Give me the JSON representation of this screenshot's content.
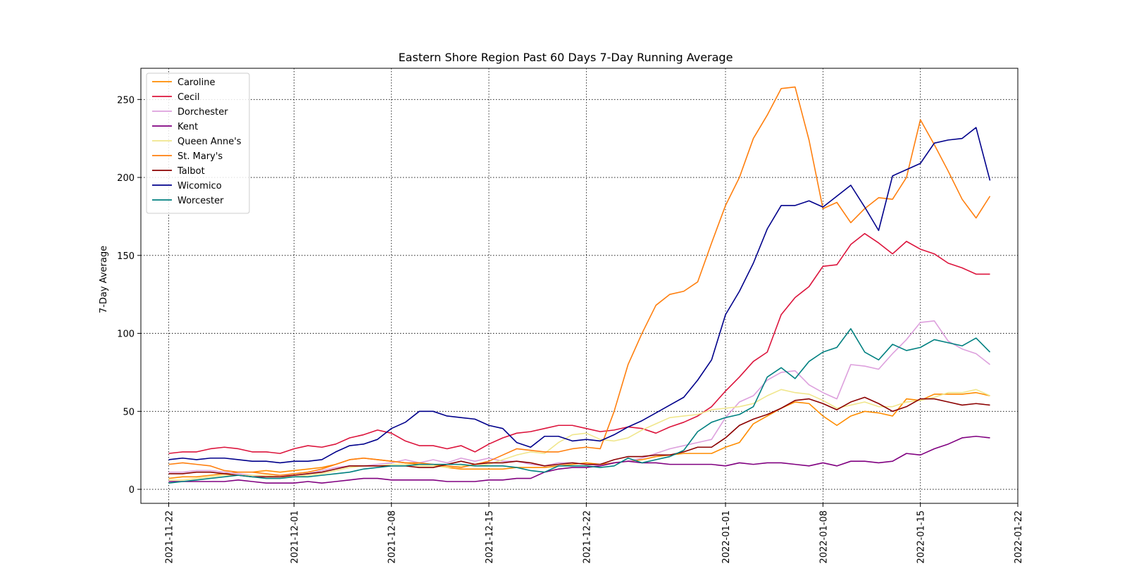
{
  "chart_data": {
    "type": "line",
    "title": "Eastern Shore Region Past 60 Days 7-Day Running Average",
    "xlabel": "",
    "ylabel": "7-Day Average",
    "xlim": [
      "2021-11-20",
      "2022-01-22"
    ],
    "ylim": [
      -9,
      270
    ],
    "x_ticks": [
      "2021-11-22",
      "2021-12-01",
      "2021-12-08",
      "2021-12-15",
      "2021-12-22",
      "2022-01-01",
      "2022-01-08",
      "2022-01-15",
      "2022-01-22"
    ],
    "y_ticks": [
      0,
      50,
      100,
      150,
      200,
      250
    ],
    "grid": true,
    "legend_position": "upper-left",
    "x": [
      "2021-11-22",
      "2021-11-23",
      "2021-11-24",
      "2021-11-25",
      "2021-11-26",
      "2021-11-27",
      "2021-11-28",
      "2021-11-29",
      "2021-11-30",
      "2021-12-01",
      "2021-12-02",
      "2021-12-03",
      "2021-12-04",
      "2021-12-05",
      "2021-12-06",
      "2021-12-07",
      "2021-12-08",
      "2021-12-09",
      "2021-12-10",
      "2021-12-11",
      "2021-12-12",
      "2021-12-13",
      "2021-12-14",
      "2021-12-15",
      "2021-12-16",
      "2021-12-17",
      "2021-12-18",
      "2021-12-19",
      "2021-12-20",
      "2021-12-21",
      "2021-12-22",
      "2021-12-23",
      "2021-12-24",
      "2021-12-25",
      "2021-12-26",
      "2021-12-27",
      "2021-12-28",
      "2021-12-29",
      "2021-12-30",
      "2021-12-31",
      "2022-01-01",
      "2022-01-02",
      "2022-01-03",
      "2022-01-04",
      "2022-01-05",
      "2022-01-06",
      "2022-01-07",
      "2022-01-08",
      "2022-01-09",
      "2022-01-10",
      "2022-01-11",
      "2022-01-12",
      "2022-01-13",
      "2022-01-14",
      "2022-01-15",
      "2022-01-16",
      "2022-01-17",
      "2022-01-18",
      "2022-01-19",
      "2022-01-20"
    ],
    "series": [
      {
        "name": "Caroline",
        "color": "#ff8c00",
        "values": [
          7,
          8,
          8,
          9,
          10,
          11,
          11,
          12,
          11,
          12,
          13,
          14,
          16,
          19,
          20,
          19,
          18,
          17,
          16,
          16,
          14,
          13,
          13,
          13,
          13,
          14,
          14,
          14,
          15,
          16,
          17,
          16,
          17,
          18,
          19,
          21,
          22,
          23,
          23,
          23,
          27,
          30,
          42,
          47,
          52,
          56,
          55,
          47,
          41,
          47,
          50,
          49,
          47,
          58,
          57,
          61,
          61,
          61,
          62,
          60
        ]
      },
      {
        "name": "Cecil",
        "color": "#dc143c",
        "values": [
          23,
          24,
          24,
          26,
          27,
          26,
          24,
          24,
          23,
          26,
          28,
          27,
          29,
          33,
          35,
          38,
          36,
          31,
          28,
          28,
          26,
          28,
          24,
          29,
          33,
          36,
          37,
          39,
          41,
          41,
          39,
          37,
          38,
          40,
          39,
          36,
          40,
          43,
          47,
          53,
          63,
          72,
          82,
          88,
          112,
          123,
          130,
          143,
          144,
          157,
          164,
          158,
          151,
          159,
          154,
          151,
          145,
          142,
          138,
          138
        ]
      },
      {
        "name": "Dorchester",
        "color": "#dda0dd",
        "values": [
          11,
          11,
          12,
          12,
          11,
          10,
          9,
          8,
          9,
          9,
          10,
          12,
          14,
          15,
          15,
          16,
          17,
          19,
          17,
          19,
          17,
          20,
          18,
          20,
          18,
          18,
          16,
          15,
          17,
          17,
          16,
          15,
          17,
          18,
          20,
          23,
          26,
          28,
          30,
          32,
          46,
          56,
          60,
          70,
          75,
          76,
          67,
          62,
          58,
          80,
          79,
          77,
          87,
          96,
          107,
          108,
          95,
          90,
          87,
          80
        ]
      },
      {
        "name": "Kent",
        "color": "#800080",
        "values": [
          5,
          5,
          5,
          5,
          5,
          6,
          5,
          4,
          4,
          4,
          5,
          4,
          5,
          6,
          7,
          7,
          6,
          6,
          6,
          6,
          5,
          5,
          5,
          6,
          6,
          7,
          7,
          11,
          13,
          14,
          14,
          15,
          17,
          18,
          17,
          17,
          16,
          16,
          16,
          16,
          15,
          17,
          16,
          17,
          17,
          16,
          15,
          17,
          15,
          18,
          18,
          17,
          18,
          23,
          22,
          26,
          29,
          33,
          34,
          33
        ]
      },
      {
        "name": "Queen Anne's",
        "color": "#f0e68c",
        "values": [
          6,
          6,
          7,
          8,
          9,
          9,
          9,
          9,
          8,
          8,
          9,
          10,
          12,
          14,
          15,
          15,
          16,
          16,
          15,
          15,
          14,
          15,
          15,
          16,
          19,
          22,
          24,
          23,
          30,
          35,
          36,
          32,
          31,
          33,
          38,
          42,
          46,
          47,
          48,
          51,
          52,
          53,
          55,
          60,
          64,
          62,
          61,
          57,
          52,
          54,
          56,
          53,
          53,
          56,
          57,
          59,
          62,
          62,
          64,
          60
        ]
      },
      {
        "name": "St. Mary's",
        "color": "#ff7f0e",
        "values": [
          16,
          17,
          16,
          15,
          12,
          11,
          11,
          10,
          9,
          10,
          11,
          13,
          16,
          19,
          20,
          19,
          18,
          17,
          17,
          16,
          15,
          14,
          16,
          18,
          22,
          26,
          25,
          24,
          24,
          26,
          27,
          26,
          50,
          80,
          100,
          118,
          125,
          127,
          133,
          158,
          182,
          200,
          225,
          240,
          257,
          258,
          224,
          180,
          184,
          171,
          180,
          187,
          186,
          200,
          237,
          221,
          204,
          186,
          174,
          188
        ]
      },
      {
        "name": "Talbot",
        "color": "#8b0000",
        "values": [
          10,
          10,
          11,
          11,
          10,
          9,
          8,
          8,
          8,
          9,
          10,
          11,
          13,
          15,
          15,
          15,
          15,
          15,
          14,
          14,
          16,
          18,
          16,
          17,
          17,
          18,
          17,
          15,
          16,
          17,
          16,
          16,
          19,
          21,
          21,
          22,
          22,
          24,
          27,
          27,
          33,
          41,
          45,
          48,
          52,
          57,
          58,
          55,
          51,
          56,
          59,
          55,
          50,
          53,
          58,
          58,
          56,
          54,
          55,
          54
        ]
      },
      {
        "name": "Wicomico",
        "color": "#00008b",
        "values": [
          19,
          20,
          19,
          20,
          20,
          19,
          18,
          18,
          17,
          18,
          18,
          19,
          24,
          28,
          29,
          32,
          39,
          43,
          50,
          50,
          47,
          46,
          45,
          41,
          39,
          30,
          27,
          34,
          34,
          31,
          32,
          31,
          35,
          40,
          44,
          49,
          54,
          59,
          70,
          83,
          112,
          127,
          145,
          167,
          182,
          182,
          185,
          181,
          188,
          195,
          181,
          166,
          201,
          205,
          209,
          222,
          224,
          225,
          232,
          198
        ]
      },
      {
        "name": "Worcester",
        "color": "#008080",
        "values": [
          4,
          5,
          6,
          7,
          8,
          9,
          8,
          7,
          7,
          8,
          8,
          9,
          10,
          11,
          13,
          14,
          15,
          15,
          16,
          16,
          16,
          16,
          15,
          15,
          15,
          14,
          12,
          11,
          15,
          15,
          15,
          14,
          15,
          20,
          17,
          19,
          21,
          25,
          37,
          43,
          46,
          48,
          53,
          72,
          78,
          71,
          82,
          88,
          91,
          103,
          88,
          83,
          93,
          89,
          91,
          96,
          94,
          92,
          97,
          88
        ]
      }
    ]
  }
}
